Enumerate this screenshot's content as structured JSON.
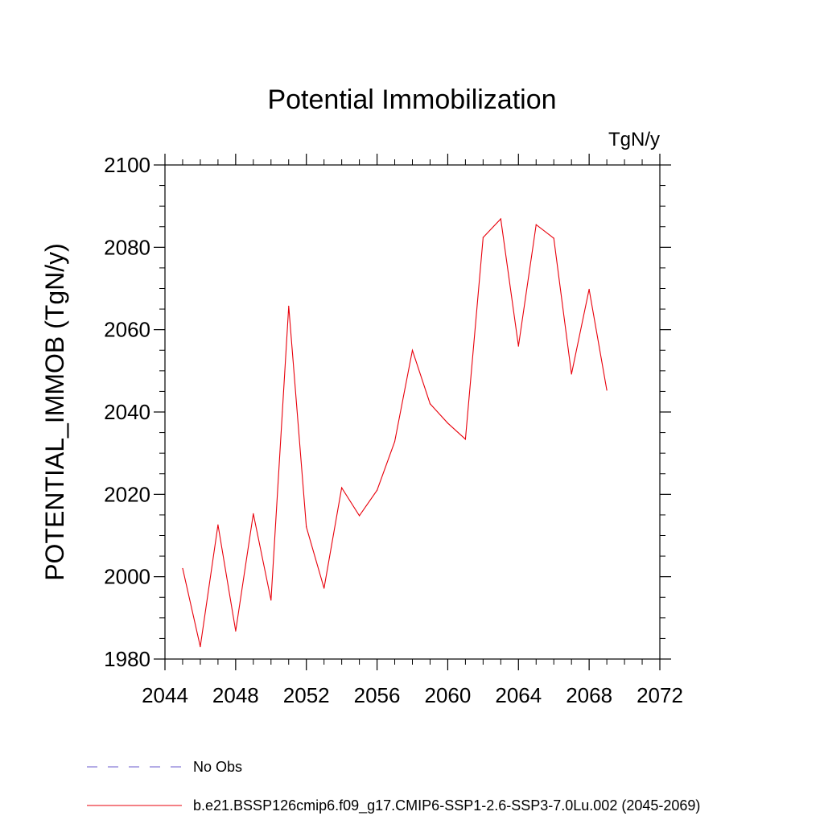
{
  "chart_data": {
    "type": "line",
    "title": "Potential Immobilization",
    "units_label": "TgN/y",
    "ylabel": "POTENTIAL_IMMOB  (TgN/y)",
    "xlim": [
      2044,
      2072
    ],
    "ylim": [
      1980,
      2100
    ],
    "x_ticks": [
      2044,
      2048,
      2052,
      2056,
      2060,
      2064,
      2068,
      2072
    ],
    "y_ticks": [
      1980,
      2000,
      2020,
      2040,
      2060,
      2080,
      2100
    ],
    "grid": false,
    "legend_placement": "bottom",
    "series": [
      {
        "name": "b.e21.BSSP126cmip6.f09_g17.CMIP6-SSP1-2.6-SSP3-7.0Lu.002 (2045-2069)",
        "color": "#e8000b",
        "line_style": "solid",
        "x": [
          2045,
          2046,
          2047,
          2048,
          2049,
          2050,
          2051,
          2052,
          2053,
          2054,
          2055,
          2056,
          2057,
          2058,
          2059,
          2060,
          2061,
          2062,
          2063,
          2064,
          2065,
          2066,
          2067,
          2068,
          2069
        ],
        "y": [
          2002.0,
          1983.0,
          2012.6,
          1986.8,
          2015.3,
          1994.3,
          2065.7,
          2012.1,
          1997.2,
          2021.6,
          2014.8,
          2021.0,
          2032.8,
          2055.0,
          2042.0,
          2037.3,
          2033.4,
          2082.4,
          2086.9,
          2056.0,
          2085.5,
          2082.2,
          2049.2,
          2069.8,
          2045.3
        ]
      }
    ],
    "legend": [
      {
        "label": "No Obs",
        "color": "#6a5acd",
        "line_style": "dashed"
      },
      {
        "label": "b.e21.BSSP126cmip6.f09_g17.CMIP6-SSP1-2.6-SSP3-7.0Lu.002 (2045-2069)",
        "color": "#e8000b",
        "line_style": "solid"
      }
    ]
  }
}
